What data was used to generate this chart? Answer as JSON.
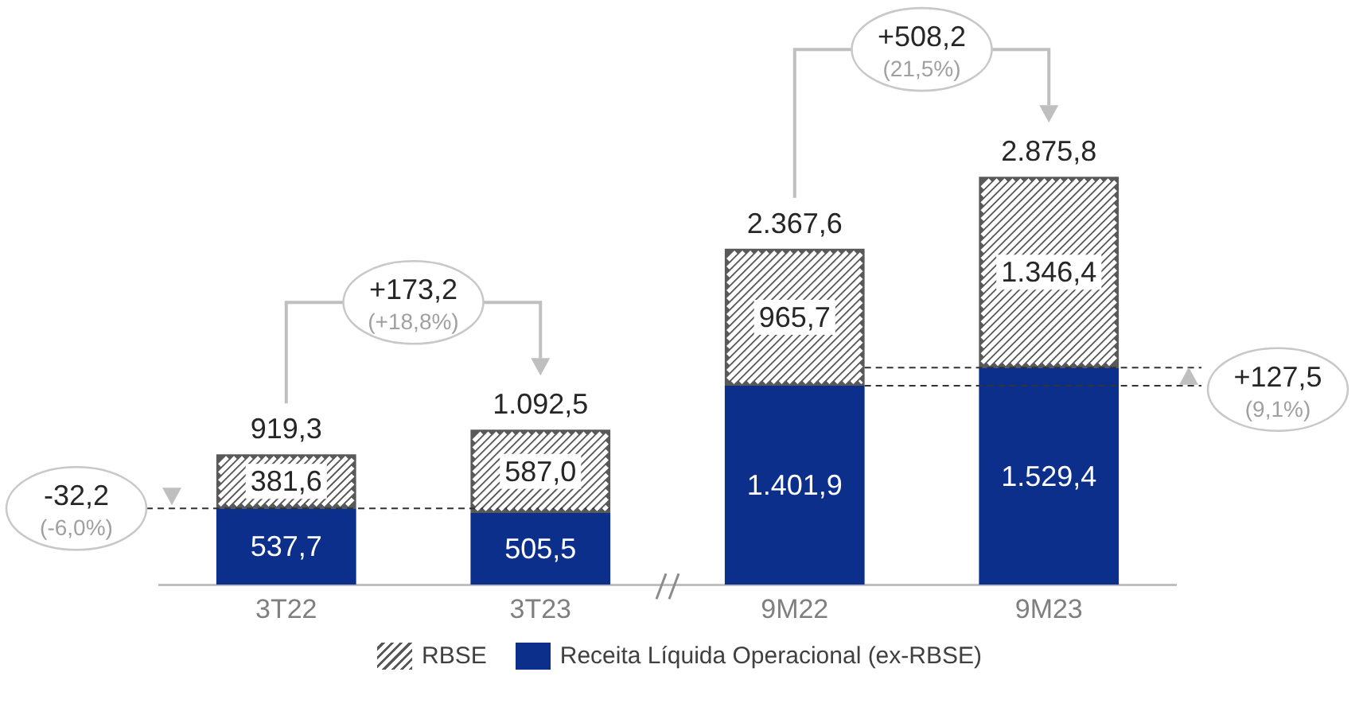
{
  "chart_data": {
    "type": "bar",
    "stacked": true,
    "categories": [
      "3T22",
      "3T23",
      "9M22",
      "9M23"
    ],
    "series": [
      {
        "name": "Receita Líquida Operacional (ex-RBSE)",
        "color": "#0b2f8a",
        "values": [
          537.7,
          505.5,
          1401.9,
          1529.4
        ],
        "value_labels": [
          "537,7",
          "505,5",
          "1.401,9",
          "1.529,4"
        ]
      },
      {
        "name": "RBSE",
        "color": "#595959",
        "values": [
          381.6,
          587.0,
          965.7,
          1346.4
        ],
        "value_labels": [
          "381,6",
          "587,0",
          "965,7",
          "1.346,4"
        ]
      }
    ],
    "totals": [
      "919,3",
      "1.092,5",
      "2.367,6",
      "2.875,8"
    ],
    "tick_labels": "x",
    "grid": false,
    "legend": "bottom",
    "ref_lines": [
      {
        "axis": "y",
        "value": 537.7,
        "line_style": "dashed",
        "color": "#333333"
      },
      {
        "axis": "y",
        "value": 1401.9,
        "line_style": "dashed",
        "color": "#333333"
      },
      {
        "axis": "y",
        "value": 1529.4,
        "line_style": "dashed",
        "color": "#333333"
      }
    ],
    "annotations": [
      "-32,2\n(-6,0%)",
      "+173,2\n(+18,8%)",
      "+508,2\n(21,5%)",
      "+127,5\n(9,1%)"
    ]
  }
}
